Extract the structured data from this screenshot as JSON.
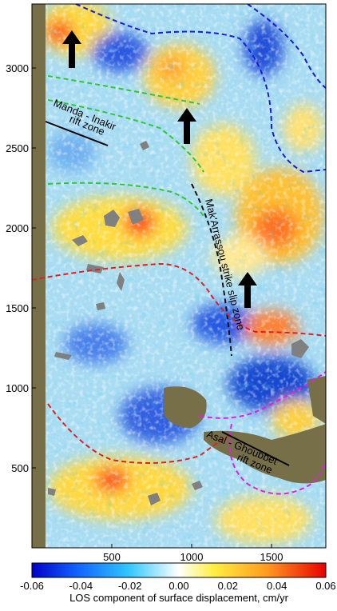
{
  "map": {
    "xaxis": {
      "lim": [
        0,
        1840
      ],
      "ticks": [
        500,
        1000,
        1500
      ]
    },
    "yaxis": {
      "lim": [
        0,
        3400
      ],
      "ticks": [
        500,
        1000,
        1500,
        2000,
        2500,
        3000
      ]
    },
    "annotations": {
      "manda": [
        "Manda - Inakir",
        "rift zone"
      ],
      "makarrassou": "Mak'Arrassou strike slip zone",
      "asal": [
        "Asal - Ghoubbet",
        "rift zone"
      ]
    },
    "colorbar": {
      "lim": [
        -0.06,
        0.06
      ],
      "ticks": [
        -0.06,
        -0.04,
        -0.02,
        {
          "value": 0,
          "label": "0.00"
        },
        0.02,
        0.04,
        0.06
      ],
      "label": "LOS component of surface displacement, cm/yr"
    }
  }
}
